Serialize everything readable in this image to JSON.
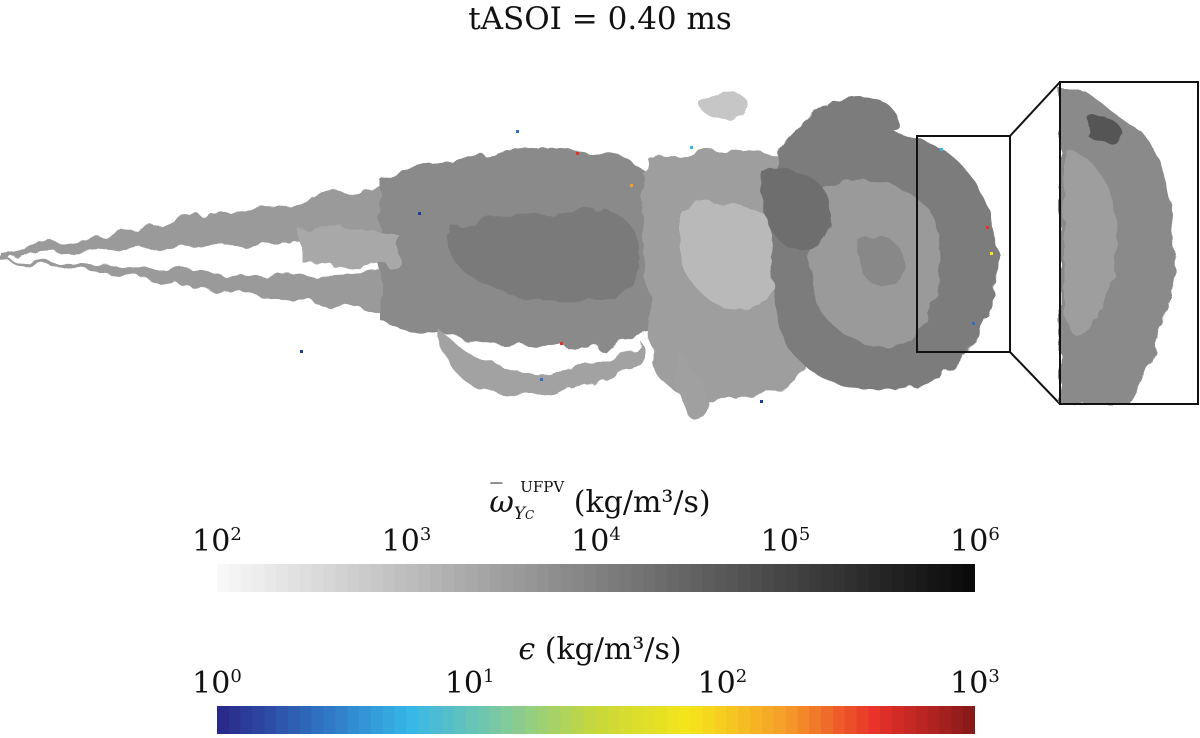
{
  "title": "tASOI = 0.40 ms",
  "colorbar_top": {
    "symbol": "ω",
    "subscript": "Y",
    "subscript_sub": "C",
    "superscript": "UFPV",
    "units": "(kg/m³/s)",
    "ticks": [
      {
        "base": "10",
        "exp": "2"
      },
      {
        "base": "10",
        "exp": "3"
      },
      {
        "base": "10",
        "exp": "4"
      },
      {
        "base": "10",
        "exp": "5"
      },
      {
        "base": "10",
        "exp": "6"
      }
    ],
    "range_log10": [
      2,
      6
    ],
    "colors": [
      "#f8f8f8",
      "#0a0a0a"
    ]
  },
  "colorbar_bottom": {
    "symbol": "ϵ",
    "units": "(kg/m³/s)",
    "ticks": [
      {
        "base": "10",
        "exp": "0"
      },
      {
        "base": "10",
        "exp": "1"
      },
      {
        "base": "10",
        "exp": "2"
      },
      {
        "base": "10",
        "exp": "3"
      }
    ],
    "range_log10": [
      0,
      3
    ],
    "colors": [
      "#2a2a8a",
      "#2f6fc0",
      "#36b7e8",
      "#7ecaa0",
      "#c8d83a",
      "#f5e51a",
      "#f6a02a",
      "#e8302a",
      "#8a1a1a"
    ]
  },
  "inset": {
    "label": "zoom-region"
  }
}
